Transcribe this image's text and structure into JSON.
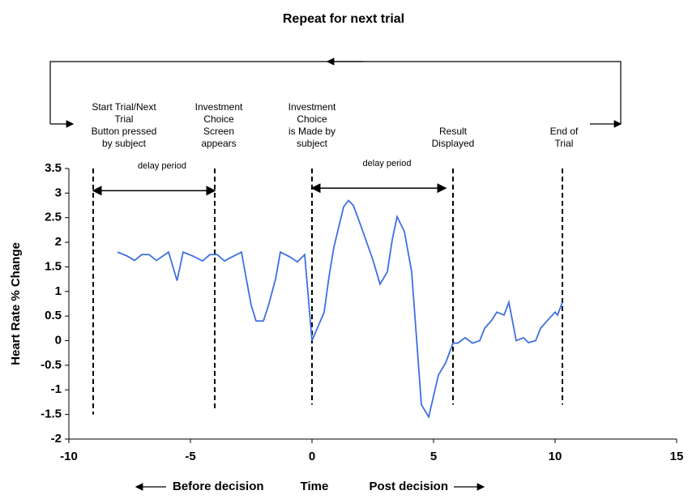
{
  "chart_data": {
    "type": "line",
    "title": "Repeat for next trial",
    "ylabel": "Heart Rate % Change",
    "xlabel_left": "Before decision",
    "xlabel_mid": "Time",
    "xlabel_right": "Post decision",
    "xlim": [
      -10,
      15
    ],
    "xticks": [
      -10,
      -5,
      0,
      5,
      10,
      15
    ],
    "ylim": [
      -2,
      3.5
    ],
    "yticks": [
      -2,
      -1.5,
      -1,
      -0.5,
      0,
      0.5,
      1,
      1.5,
      2,
      2.5,
      3,
      3.5
    ],
    "series": [
      {
        "color": "#3f6fe0",
        "x": [
          -8,
          -7.6,
          -7.3,
          -7,
          -6.7,
          -6.4,
          -5.9,
          -5.55,
          -5.3,
          -4.9,
          -4.5,
          -4.2,
          -3.9,
          -3.6,
          -3.3,
          -2.9,
          -2.7,
          -2.5,
          -2.3,
          -2.0,
          -1.8,
          -1.5,
          -1.3,
          -0.9,
          -0.6,
          -0.3,
          0,
          0.5,
          0.7,
          0.9,
          1.3,
          1.5,
          1.7,
          2.0,
          2.5,
          2.8,
          3.1,
          3.3,
          3.5,
          3.8,
          4.1,
          4.5,
          4.8,
          5.2,
          5.5,
          5.8,
          6.0,
          6.3,
          6.6,
          6.9,
          7.1,
          7.4,
          7.6,
          7.9,
          8.1,
          8.4,
          8.7,
          8.9,
          9.2,
          9.4,
          9.7,
          10.0,
          10.1,
          10.3
        ],
        "values": [
          1.8,
          1.72,
          1.63,
          1.75,
          1.75,
          1.63,
          1.8,
          1.22,
          1.8,
          1.72,
          1.62,
          1.75,
          1.75,
          1.62,
          1.7,
          1.8,
          1.25,
          0.72,
          0.4,
          0.4,
          0.7,
          1.25,
          1.8,
          1.7,
          1.6,
          1.75,
          0,
          0.58,
          1.3,
          1.9,
          2.72,
          2.85,
          2.75,
          2.35,
          1.65,
          1.15,
          1.4,
          2.05,
          2.52,
          2.22,
          1.4,
          -1.3,
          -1.55,
          -0.7,
          -0.45,
          -0.05,
          -0.05,
          0.06,
          -0.05,
          0,
          0.25,
          0.42,
          0.58,
          0.52,
          0.78,
          0,
          0.06,
          -0.04,
          0,
          0.25,
          0.42,
          0.58,
          0.52,
          0.78
        ]
      }
    ],
    "events": [
      {
        "x": -9,
        "y_end": -1.5,
        "lines": [
          "Start Trial/Next",
          "Trial",
          "Button pressed",
          "by subject"
        ]
      },
      {
        "x": -4,
        "y_end": -1.4,
        "lines": [
          "Investment",
          "Choice",
          "Screen",
          "appears"
        ]
      },
      {
        "x": 0,
        "y_end": -1.3,
        "lines": [
          "Investment",
          "Choice",
          "is Made by",
          "subject"
        ]
      },
      {
        "x": 5.8,
        "y_end": -1.3,
        "lines": [
          "Result",
          "Displayed"
        ]
      },
      {
        "x": 10.3,
        "y_end": -1.3,
        "lines": [
          "End of",
          "Trial"
        ]
      }
    ],
    "periods": [
      {
        "from": -9,
        "to": -4,
        "y": 3.05,
        "label": "delay period"
      },
      {
        "from": 0,
        "to": 5.5,
        "y": 3.1,
        "label": "delay period"
      }
    ]
  }
}
